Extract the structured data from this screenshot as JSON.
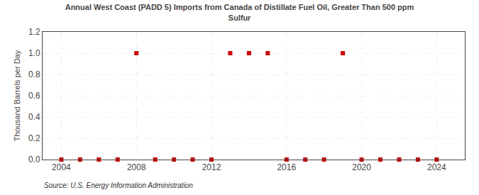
{
  "chart_data": {
    "type": "scatter",
    "title": "Annual West Coast (PADD 5) Imports from Canada of Distillate Fuel Oil, Greater Than 500 ppm\nSulfur",
    "ylabel": "Thousand Barrels per Day",
    "annotations": [
      "Source: U.S. Energy Information Administration"
    ],
    "x": [
      2004,
      2005,
      2006,
      2007,
      2008,
      2009,
      2010,
      2011,
      2012,
      2013,
      2014,
      2015,
      2016,
      2017,
      2018,
      2019,
      2020,
      2021,
      2022,
      2023,
      2024
    ],
    "values": [
      0.0,
      0.0,
      0.0,
      0.0,
      1.0,
      0.0,
      0.0,
      0.0,
      0.0,
      1.0,
      1.0,
      1.0,
      0.0,
      0.0,
      0.0,
      1.0,
      0.0,
      0.0,
      0.0,
      0.0,
      0.0
    ],
    "color": "#cc0000",
    "marker": "square",
    "xlim": [
      2003.0,
      2025.5
    ],
    "xticks": [
      2004,
      2008,
      2012,
      2016,
      2020,
      2024
    ],
    "ylim": [
      0.0,
      1.2
    ],
    "yticks": [
      {
        "value": 0.0,
        "label": "0.0"
      },
      0.2,
      0.4,
      0.6,
      0.8,
      {
        "value": 1.0,
        "label": "1.0"
      },
      1.2
    ],
    "grid": true
  }
}
